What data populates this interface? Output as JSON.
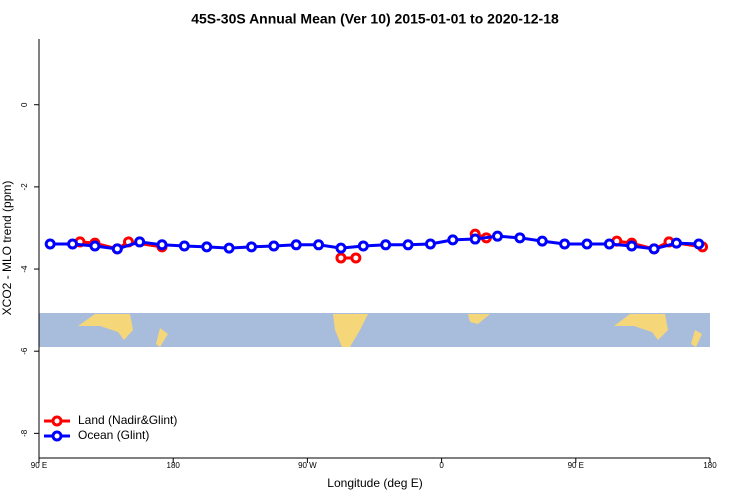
{
  "chart_data": {
    "type": "line",
    "title": "45S-30S Annual Mean (Ver 10)   2015-01-01 to 2020-12-18",
    "x_label": "Longitude (deg E)",
    "y_label": "XCO2 - MLO trend (ppm)",
    "xlim": [
      90,
      540
    ],
    "xticks": [
      {
        "value": 90,
        "label": "90 E"
      },
      180,
      {
        "value": 270,
        "label": "90 W"
      },
      {
        "value": 360,
        "label": "0"
      },
      {
        "value": 450,
        "label": "90 E"
      },
      {
        "value": 540,
        "label": "180"
      }
    ],
    "ylim": [
      -8.6,
      1.6
    ],
    "yticks": [
      0,
      -2,
      -4,
      -6,
      -8
    ],
    "legend": "bottomleft",
    "series": [
      {
        "name": "Land (Nadir&Glint)",
        "color": "#ff0000",
        "x": [
          117.5,
          127.5,
          142.5,
          150,
          172.5,
          null,
          292.5,
          302.5,
          null,
          382.5,
          390,
          null,
          477.5,
          487.5,
          502.5,
          512.5,
          535
        ],
        "values": [
          -3.34,
          -3.37,
          -3.51,
          -3.34,
          -3.46,
          null,
          -3.73,
          -3.73,
          null,
          -3.15,
          -3.24,
          null,
          -3.32,
          -3.37,
          -3.51,
          -3.34,
          -3.46
        ]
      },
      {
        "name": "Ocean (Glint)",
        "color": "#0000ff",
        "x": [
          97.5,
          112.5,
          127.5,
          142.5,
          157.5,
          172.5,
          187.5,
          202.5,
          217.5,
          232.5,
          247.5,
          262.5,
          277.5,
          292.5,
          307.5,
          322.5,
          337.5,
          352.5,
          367.5,
          382.5,
          397.5,
          412.5,
          427.5,
          442.5,
          457.5,
          472.5,
          487.5,
          502.5,
          517.5,
          532.5
        ],
        "values": [
          -3.39,
          -3.39,
          -3.44,
          -3.51,
          -3.34,
          -3.41,
          -3.44,
          -3.46,
          -3.49,
          -3.46,
          -3.44,
          -3.41,
          -3.41,
          -3.49,
          -3.44,
          -3.41,
          -3.41,
          -3.39,
          -3.29,
          -3.27,
          -3.2,
          -3.24,
          -3.32,
          -3.39,
          -3.39,
          -3.39,
          -3.44,
          -3.51,
          -3.37,
          -3.39
        ]
      }
    ]
  }
}
